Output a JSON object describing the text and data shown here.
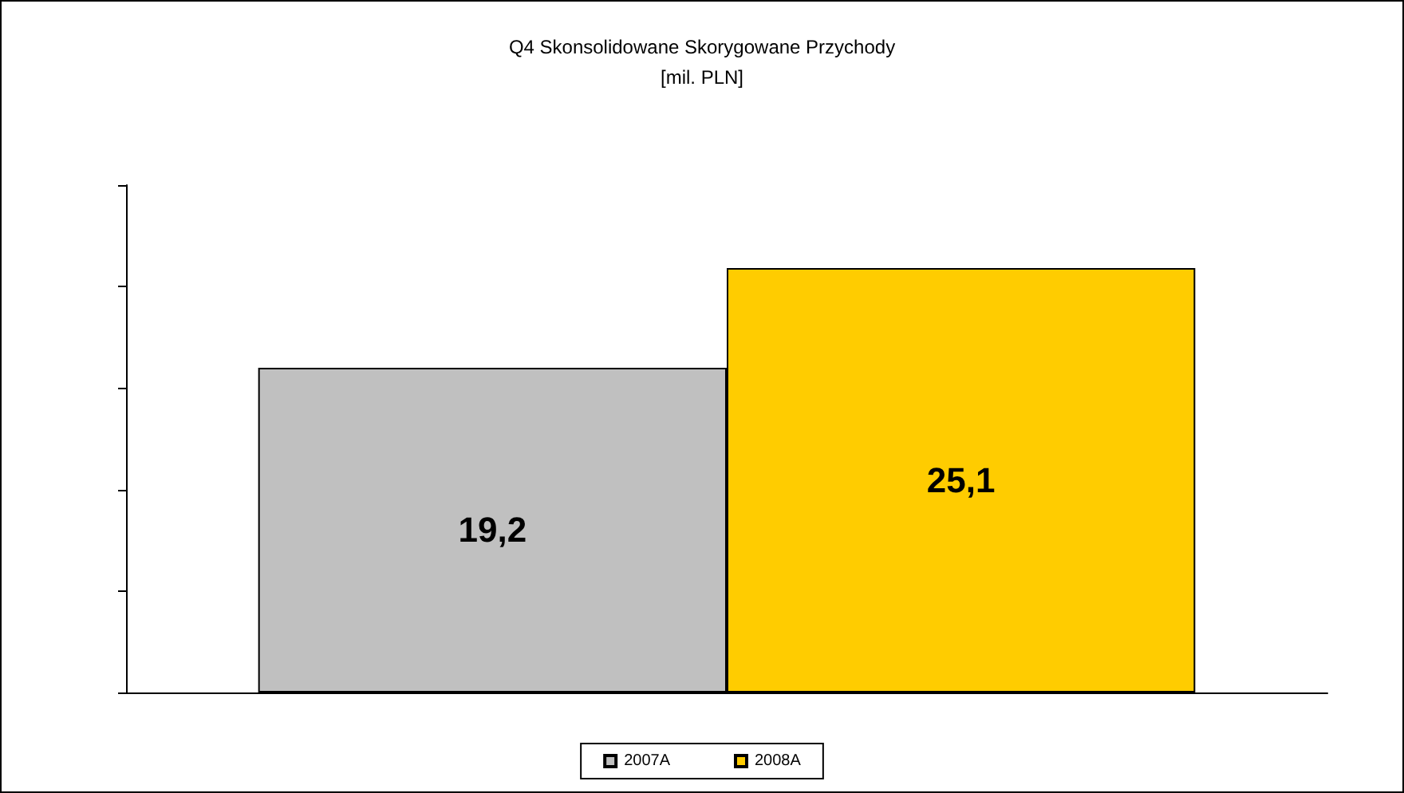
{
  "chart_data": {
    "type": "bar",
    "title": "Q4 Skonsolidowane Skorygowane Przychody\n[mil. PLN]",
    "categories": [
      null
    ],
    "series": [
      {
        "name": "2007A",
        "color": "#c0c0c0",
        "values": [
          19.2
        ],
        "value_labels": [
          "19,2"
        ]
      },
      {
        "name": "2008A",
        "color": "#ffcc00",
        "values": [
          25.1
        ],
        "value_labels": [
          "25,1"
        ]
      }
    ],
    "ylim": [
      0,
      30
    ],
    "yticks": [
      {
        "value": 0,
        "label": null
      },
      {
        "value": 6,
        "label": null
      },
      {
        "value": 12,
        "label": null
      },
      {
        "value": 18,
        "label": null
      },
      {
        "value": 24,
        "label": null
      },
      {
        "value": 30,
        "label": null
      }
    ],
    "grid": false,
    "legend": "bottom"
  }
}
